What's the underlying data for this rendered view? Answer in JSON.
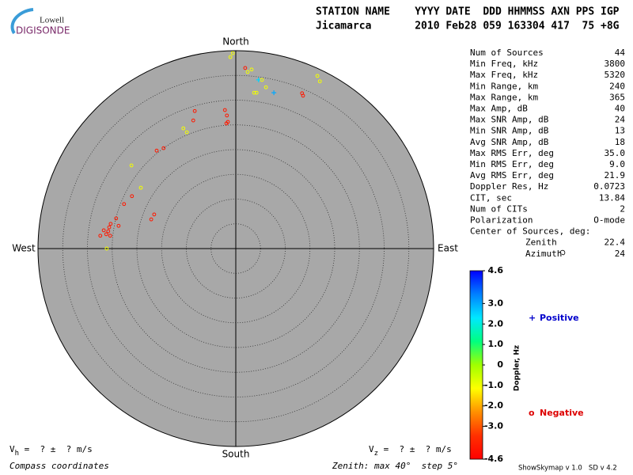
{
  "header": {
    "logo_top": "Lowell",
    "logo_bottom": "DIGISONDE",
    "line1": "STATION NAME    YYYY DATE  DDD HHMMSS AXN PPS IGP",
    "line2": "Jicamarca       2010 Feb28 059 163304 417  75 +8G"
  },
  "stats": [
    [
      "Num of Sources",
      "44"
    ],
    [
      "Min Freq, kHz",
      "3800"
    ],
    [
      "Max Freq, kHz",
      "5320"
    ],
    [
      "Min Range, km",
      "240"
    ],
    [
      "Max Range, km",
      "365"
    ],
    [
      "Max Amp, dB",
      "40"
    ],
    [
      "Max SNR Amp, dB",
      "24"
    ],
    [
      "Min SNR Amp, dB",
      "13"
    ],
    [
      "Avg SNR Amp, dB",
      "18"
    ],
    [
      "Max RMS Err, deg",
      "35.0"
    ],
    [
      "Min RMS Err, deg",
      "9.0"
    ],
    [
      "Avg RMS Err, deg",
      "21.9"
    ],
    [
      "Doppler Res, Hz",
      "0.0723"
    ],
    [
      "CIT, sec",
      "13.84"
    ],
    [
      "Num of CITs",
      "2"
    ],
    [
      "Polarization",
      "O-mode"
    ]
  ],
  "center": {
    "title": "Center of Sources, deg:",
    "rows": [
      [
        "Zenith",
        "22.4"
      ],
      [
        "Azimuth",
        "24"
      ]
    ]
  },
  "chart_data": {
    "type": "polar-scatter",
    "directions": {
      "north": "North",
      "south": "South",
      "west": "West",
      "east": "East"
    },
    "zenith_max": 40,
    "zenith_step": 5,
    "fill": "#a8a8a8",
    "points": [
      {
        "east": -0.6,
        "north": 39.5,
        "doppler": -1
      },
      {
        "east": -1.1,
        "north": 38.7,
        "doppler": -1
      },
      {
        "east": 1.9,
        "north": 36.5,
        "doppler": -4
      },
      {
        "east": 3.2,
        "north": 36.2,
        "doppler": -1
      },
      {
        "east": 2.4,
        "north": 35.7,
        "doppler": -1
      },
      {
        "east": 4.6,
        "north": 34.1,
        "doppler": 2.5
      },
      {
        "east": 5.3,
        "north": 34.1,
        "doppler": -1
      },
      {
        "east": 6.1,
        "north": 32.6,
        "doppler": -1
      },
      {
        "east": 3.7,
        "north": 31.5,
        "doppler": -1
      },
      {
        "east": 4.2,
        "north": 31.5,
        "doppler": -1
      },
      {
        "east": 7.7,
        "north": 31.5,
        "doppler": 3
      },
      {
        "east": 16.5,
        "north": 34.9,
        "doppler": -1
      },
      {
        "east": 17.0,
        "north": 33.8,
        "doppler": -1
      },
      {
        "east": 13.4,
        "north": 31.4,
        "doppler": -4
      },
      {
        "east": 13.6,
        "north": 30.9,
        "doppler": -4
      },
      {
        "east": -8.3,
        "north": 27.8,
        "doppler": -4
      },
      {
        "east": -8.6,
        "north": 25.9,
        "doppler": -4
      },
      {
        "east": -2.2,
        "north": 28.0,
        "doppler": -4
      },
      {
        "east": -1.8,
        "north": 26.9,
        "doppler": -4
      },
      {
        "east": -1.6,
        "north": 25.6,
        "doppler": -4
      },
      {
        "east": -1.9,
        "north": 25.3,
        "doppler": -4
      },
      {
        "east": -10.6,
        "north": 24.3,
        "doppler": -1
      },
      {
        "east": -9.9,
        "north": 23.5,
        "doppler": -1
      },
      {
        "east": -14.6,
        "north": 20.3,
        "doppler": -4
      },
      {
        "east": -16.0,
        "north": 19.8,
        "doppler": -4
      },
      {
        "east": -21.1,
        "north": 16.8,
        "doppler": -1
      },
      {
        "east": -19.2,
        "north": 12.3,
        "doppler": -1
      },
      {
        "east": -21.0,
        "north": 10.6,
        "doppler": -4
      },
      {
        "east": -22.6,
        "north": 9.0,
        "doppler": -4
      },
      {
        "east": -16.5,
        "north": 6.9,
        "doppler": -4
      },
      {
        "east": -17.1,
        "north": 5.9,
        "doppler": -4
      },
      {
        "east": -24.2,
        "north": 6.1,
        "doppler": -4
      },
      {
        "east": -23.7,
        "north": 4.6,
        "doppler": -4
      },
      {
        "east": -25.3,
        "north": 5.0,
        "doppler": -4
      },
      {
        "east": -25.6,
        "north": 4.3,
        "doppler": -4
      },
      {
        "east": -25.8,
        "north": 3.5,
        "doppler": -4
      },
      {
        "east": -26.2,
        "north": 2.9,
        "doppler": -4
      },
      {
        "east": -26.7,
        "north": 3.7,
        "doppler": -4
      },
      {
        "east": -27.4,
        "north": 2.6,
        "doppler": -4
      },
      {
        "east": -25.4,
        "north": 2.6,
        "doppler": -4
      },
      {
        "east": -26.1,
        "north": 0.0,
        "doppler": -1
      }
    ],
    "colorbar": {
      "title": "Doppler, Hz",
      "lim": [
        -4.6,
        4.6
      ],
      "colors": [
        "#ff0000",
        "#ff3000",
        "#ff9000",
        "#ffff00",
        "#a0ff00",
        "#00ff80",
        "#00e8ff",
        "#0080ff",
        "#0000ff"
      ],
      "ticks": [
        4.6,
        {
          "value": 3,
          "label": "3.0"
        },
        {
          "value": 2,
          "label": "2.0"
        },
        {
          "value": 1,
          "label": "1.0"
        },
        0,
        {
          "value": -1,
          "label": "-1.0"
        },
        {
          "value": -2,
          "label": "-2.0"
        },
        {
          "value": -3,
          "label": "-3.0"
        },
        -4.6
      ]
    },
    "legend": {
      "positive_symbol": "+",
      "positive": "Positive",
      "positive_color": "#0000cc",
      "negative_symbol": "o",
      "negative": "Negative",
      "negative_color": "#dd0000"
    }
  },
  "footer": {
    "vh_symbol": "V",
    "vh_sub": "h",
    "vh_rest": " =  ? ±  ? m/s",
    "vz_symbol": "V",
    "vz_sub": "z",
    "vz_rest": " =  ? ±  ? m/s",
    "coords": "Compass coordinates",
    "zenith": "Zenith: max 40°  step 5°",
    "version": "ShowSkymap v 1.0   SD v 4.2"
  }
}
